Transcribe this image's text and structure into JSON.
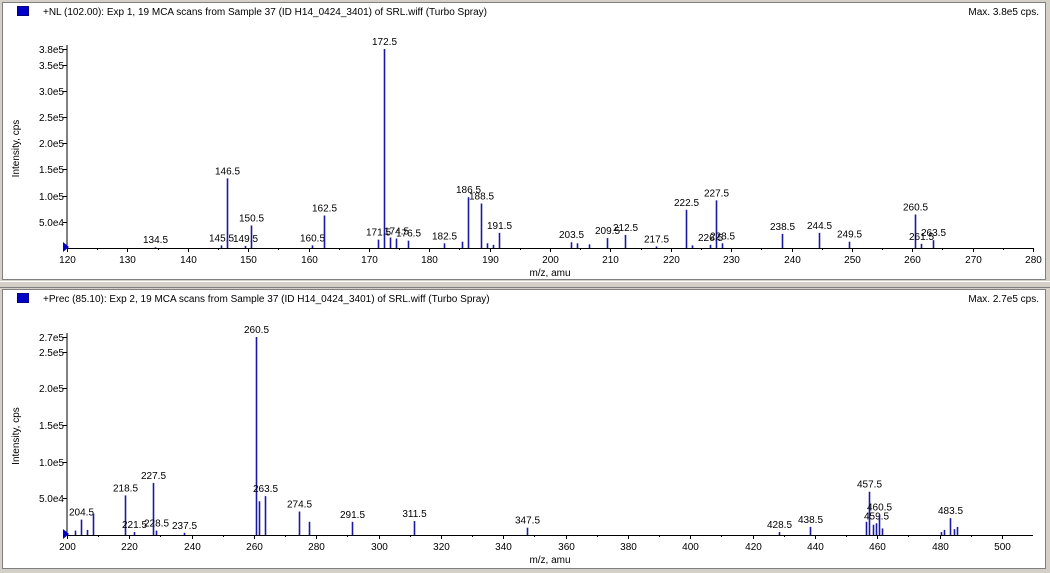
{
  "panes": [
    {
      "title": "+NL (102.00): Exp 1, 19 MCA scans from Sample 37 (ID H14_0424_3401) of SRL.wiff (Turbo Spray)",
      "max_label": "Max. 3.8e5 cps.",
      "icon": "spectrum-color-square",
      "color": "#1a1aa0"
    },
    {
      "title": "+Prec (85.10): Exp 2, 19 MCA scans from Sample 37 (ID H14_0424_3401) of SRL.wiff (Turbo Spray)",
      "max_label": "Max. 2.7e5 cps.",
      "icon": "spectrum-color-square",
      "color": "#1a1aa0"
    }
  ],
  "chart_data": [
    {
      "type": "bar",
      "title": "+NL (102.00): Exp 1, 19 MCA scans from Sample 37 (ID H14_0424_3401) of SRL.wiff (Turbo Spray)",
      "xlabel": "m/z, amu",
      "ylabel": "Intensity, cps",
      "xlim": [
        120,
        280
      ],
      "ylim": [
        0,
        380000
      ],
      "xticks": [
        120,
        130,
        140,
        150,
        160,
        170,
        180,
        190,
        200,
        210,
        220,
        230,
        240,
        250,
        260,
        270,
        280
      ],
      "yticks": [
        {
          "value": 50000,
          "label": "5.0e4"
        },
        {
          "value": 100000,
          "label": "1.0e5"
        },
        {
          "value": 150000,
          "label": "1.5e5"
        },
        {
          "value": 200000,
          "label": "2.0e5"
        },
        {
          "value": 250000,
          "label": "2.5e5"
        },
        {
          "value": 300000,
          "label": "3.0e5"
        },
        {
          "value": 350000,
          "label": "3.5e5"
        },
        {
          "value": 380000,
          "label": "3.8e5"
        }
      ],
      "peaks": [
        {
          "x": 134.5,
          "y": 1500,
          "label": "134.5"
        },
        {
          "x": 145.5,
          "y": 5000,
          "label": "145.5"
        },
        {
          "x": 146.5,
          "y": 133000,
          "label": "146.5"
        },
        {
          "x": 149.5,
          "y": 4000,
          "label": "149.5"
        },
        {
          "x": 150.5,
          "y": 43000,
          "label": "150.5"
        },
        {
          "x": 160.5,
          "y": 5000,
          "label": "160.5"
        },
        {
          "x": 162.5,
          "y": 62000,
          "label": "162.5"
        },
        {
          "x": 171.5,
          "y": 16000,
          "label": "171.5"
        },
        {
          "x": 172.5,
          "y": 380000,
          "label": "172.5"
        },
        {
          "x": 173.5,
          "y": 20000
        },
        {
          "x": 174.5,
          "y": 18000,
          "label": "174.5"
        },
        {
          "x": 176.5,
          "y": 14000,
          "label": "176.5"
        },
        {
          "x": 182.5,
          "y": 9000,
          "label": "182.5"
        },
        {
          "x": 185.5,
          "y": 12000
        },
        {
          "x": 186.5,
          "y": 97000,
          "label": "186.5"
        },
        {
          "x": 188.5,
          "y": 85000,
          "label": "188.5"
        },
        {
          "x": 189.5,
          "y": 9000
        },
        {
          "x": 190.5,
          "y": 6000
        },
        {
          "x": 191.5,
          "y": 29000,
          "label": "191.5"
        },
        {
          "x": 203.5,
          "y": 11000,
          "label": "203.5"
        },
        {
          "x": 204.5,
          "y": 9000
        },
        {
          "x": 206.5,
          "y": 7000
        },
        {
          "x": 209.5,
          "y": 19000,
          "label": "209.5"
        },
        {
          "x": 212.5,
          "y": 25000,
          "label": "212.5"
        },
        {
          "x": 217.5,
          "y": 3000,
          "label": "217.5"
        },
        {
          "x": 222.5,
          "y": 73000,
          "label": "222.5"
        },
        {
          "x": 223.5,
          "y": 5000
        },
        {
          "x": 226.5,
          "y": 6000,
          "label": "226.5"
        },
        {
          "x": 227.5,
          "y": 91000,
          "label": "227.5"
        },
        {
          "x": 228.5,
          "y": 9000,
          "label": "228.5"
        },
        {
          "x": 238.5,
          "y": 27000,
          "label": "238.5"
        },
        {
          "x": 244.5,
          "y": 29000,
          "label": "244.5"
        },
        {
          "x": 249.5,
          "y": 12000,
          "label": "249.5"
        },
        {
          "x": 260.5,
          "y": 64000,
          "label": "260.5"
        },
        {
          "x": 261.5,
          "y": 8000,
          "label": "261.5"
        },
        {
          "x": 263.5,
          "y": 15000,
          "label": "263.5"
        }
      ]
    },
    {
      "type": "bar",
      "title": "+Prec (85.10): Exp 2, 19 MCA scans from Sample 37 (ID H14_0424_3401) of SRL.wiff (Turbo Spray)",
      "xlabel": "m/z, amu",
      "ylabel": "Intensity, cps",
      "xlim": [
        200,
        510
      ],
      "ylim": [
        0,
        270000
      ],
      "xticks": [
        200,
        220,
        240,
        260,
        280,
        300,
        320,
        340,
        360,
        380,
        400,
        420,
        440,
        460,
        480,
        500
      ],
      "yticks": [
        {
          "value": 50000,
          "label": "5.0e4"
        },
        {
          "value": 100000,
          "label": "1.0e5"
        },
        {
          "value": 150000,
          "label": "1.5e5"
        },
        {
          "value": 200000,
          "label": "2.0e5"
        },
        {
          "value": 250000,
          "label": "2.5e5"
        },
        {
          "value": 270000,
          "label": "2.7e5"
        }
      ],
      "peaks": [
        {
          "x": 202.5,
          "y": 6000
        },
        {
          "x": 204.5,
          "y": 21000,
          "label": "204.5"
        },
        {
          "x": 206.5,
          "y": 7000
        },
        {
          "x": 208.5,
          "y": 29000
        },
        {
          "x": 218.5,
          "y": 54000,
          "label": "218.5"
        },
        {
          "x": 221.5,
          "y": 4000,
          "label": "221.5"
        },
        {
          "x": 227.5,
          "y": 71000,
          "label": "227.5"
        },
        {
          "x": 228.5,
          "y": 6000,
          "label": "228.5"
        },
        {
          "x": 237.5,
          "y": 3000,
          "label": "237.5"
        },
        {
          "x": 260.5,
          "y": 270000,
          "label": "260.5"
        },
        {
          "x": 261.5,
          "y": 46000
        },
        {
          "x": 263.5,
          "y": 53000,
          "label": "263.5"
        },
        {
          "x": 274.5,
          "y": 32000,
          "label": "274.5"
        },
        {
          "x": 277.5,
          "y": 18000
        },
        {
          "x": 291.5,
          "y": 18000,
          "label": "291.5"
        },
        {
          "x": 311.5,
          "y": 19000,
          "label": "311.5"
        },
        {
          "x": 347.5,
          "y": 10000,
          "label": "347.5"
        },
        {
          "x": 428.5,
          "y": 4000,
          "label": "428.5"
        },
        {
          "x": 438.5,
          "y": 11000,
          "label": "438.5"
        },
        {
          "x": 456.5,
          "y": 18000
        },
        {
          "x": 457.5,
          "y": 59000,
          "label": "457.5"
        },
        {
          "x": 458.5,
          "y": 14000
        },
        {
          "x": 459.5,
          "y": 16000,
          "label": "459.5"
        },
        {
          "x": 460.5,
          "y": 28000,
          "label": "460.5"
        },
        {
          "x": 461.5,
          "y": 9000
        },
        {
          "x": 480.5,
          "y": 4000
        },
        {
          "x": 481.5,
          "y": 7000
        },
        {
          "x": 483.5,
          "y": 23000,
          "label": "483.5"
        },
        {
          "x": 484.5,
          "y": 8000
        },
        {
          "x": 485.5,
          "y": 11000
        }
      ]
    }
  ]
}
